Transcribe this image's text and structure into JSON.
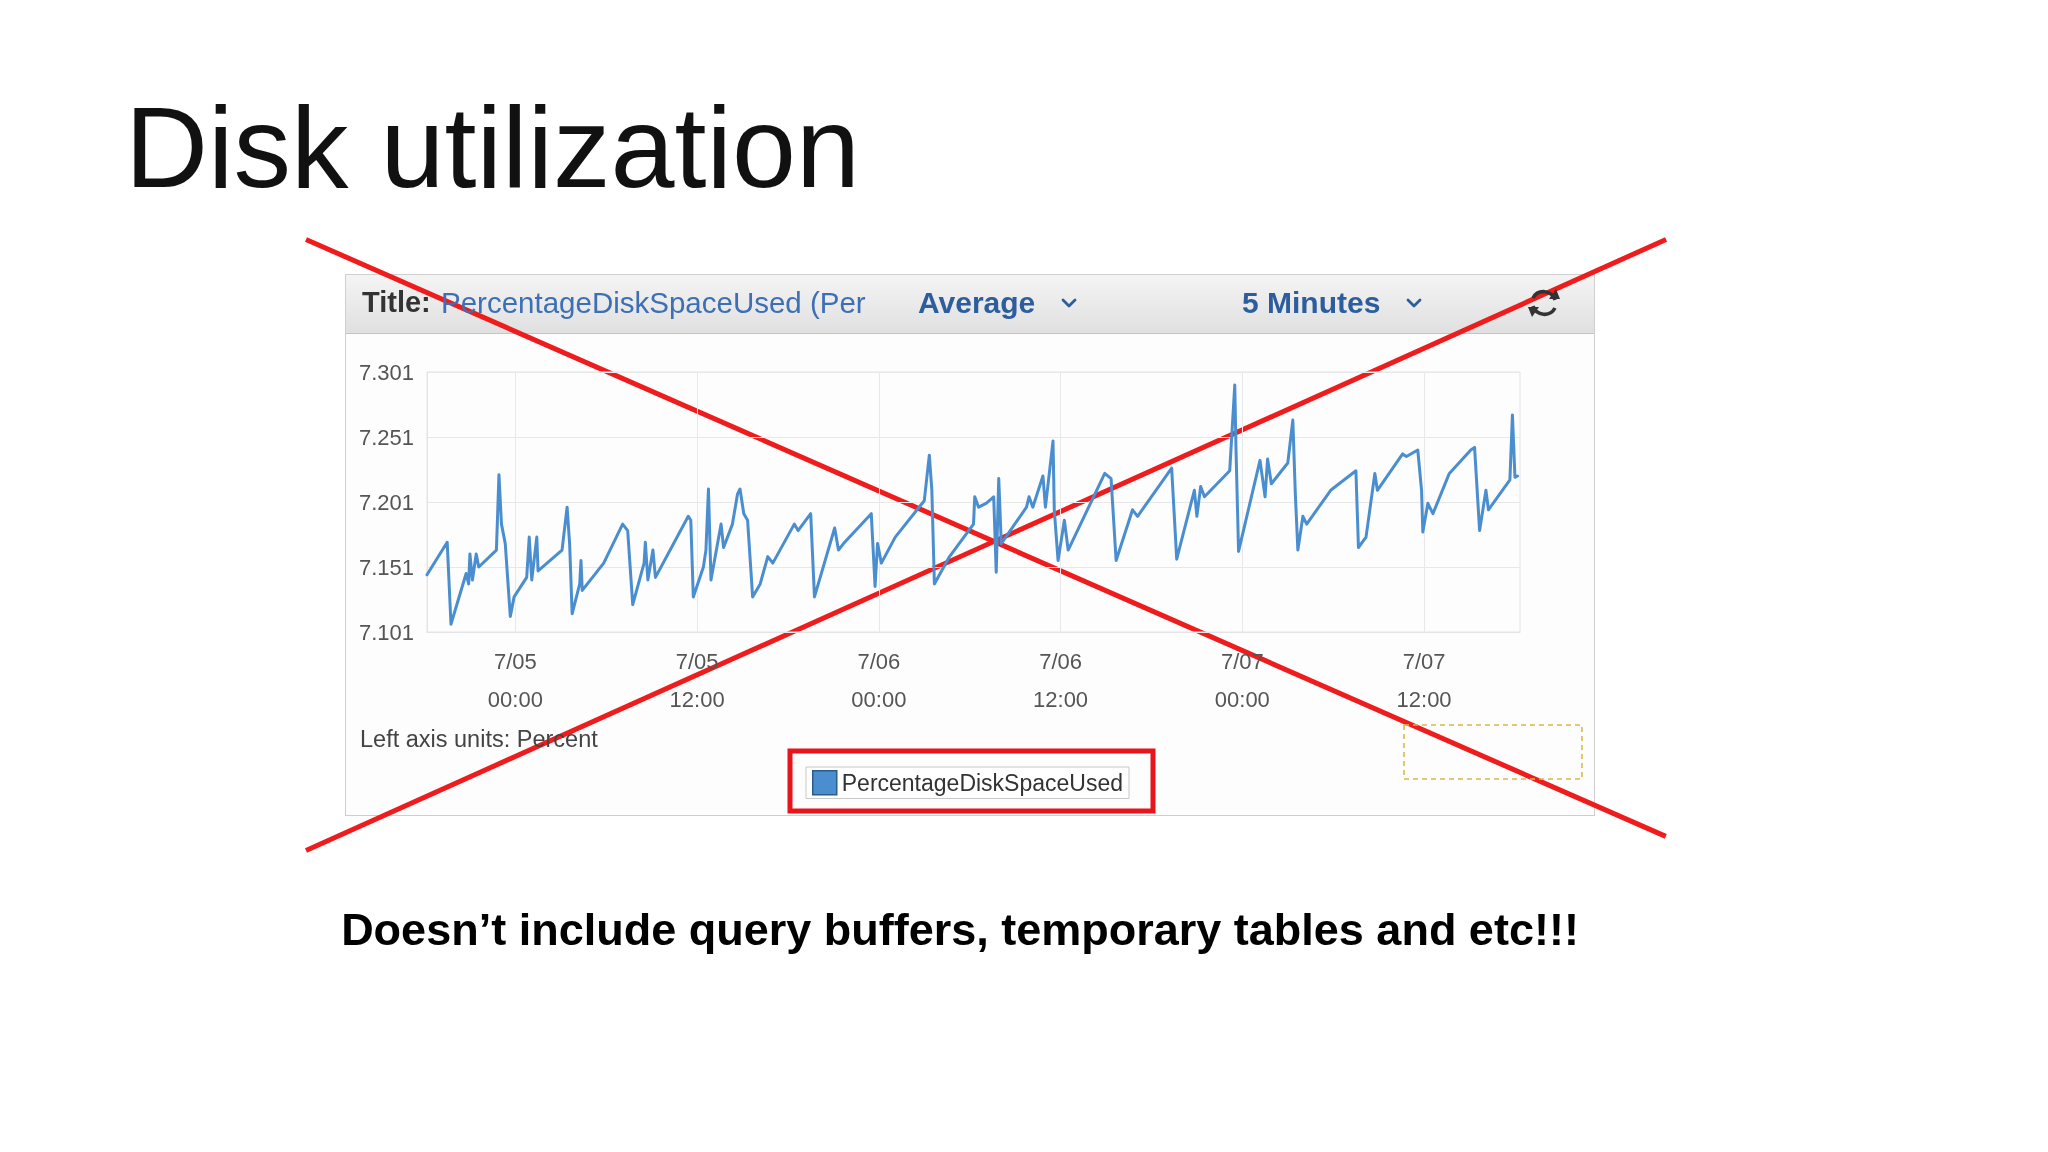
{
  "chart_data": {
    "type": "line",
    "title": "Disk utilization",
    "ylabel": "Left axis units: Percent",
    "annotations": [
      "Title:",
      "PercentageDiskSpaceUsed (Per",
      "Average",
      "5 Minutes",
      "Doesn’t include query buffers, temporary tables and etc!!!"
    ],
    "x": [
      "--07-04T18:10",
      "--07-04T19:30",
      "--07-04T19:45",
      "--07-04T20:45",
      "--07-04T20:55",
      "--07-04T21:00",
      "--07-04T21:10",
      "--07-04T21:25",
      "--07-04T21:35",
      "--07-04T22:45",
      "--07-04T22:55",
      "--07-04T23:05",
      "--07-04T23:20",
      "--07-04T23:40",
      "--07-04T23:55",
      "--07-05T00:45",
      "--07-05T00:55",
      "--07-05T01:05",
      "--07-05T01:25",
      "--07-05T01:30",
      "--07-05T03:05",
      "--07-05T03:25",
      "--07-05T03:35",
      "--07-05T03:45",
      "--07-05T04:15",
      "--07-05T04:20",
      "--07-05T04:25",
      "--07-05T05:50",
      "--07-05T07:05",
      "--07-05T07:25",
      "--07-05T07:45",
      "--07-05T08:30",
      "--07-05T08:35",
      "--07-05T08:45",
      "--07-05T09:05",
      "--07-05T09:15",
      "--07-05T11:25",
      "--07-05T11:35",
      "--07-05T11:45",
      "--07-05T12:25",
      "--07-05T12:35",
      "--07-05T12:45",
      "--07-05T12:55",
      "--07-05T13:35",
      "--07-05T13:45",
      "--07-05T14:20",
      "--07-05T14:40",
      "--07-05T14:50",
      "--07-05T15:05",
      "--07-05T15:20",
      "--07-05T15:40",
      "--07-05T16:10",
      "--07-05T16:40",
      "--07-05T17:00",
      "--07-05T18:25",
      "--07-05T18:40",
      "--07-05T19:30",
      "--07-05T19:45",
      "--07-05T21:05",
      "--07-05T21:20",
      "--07-05T21:40",
      "--07-05T23:30",
      "--07-05T23:45",
      "--07-05T23:55",
      "--07-06T00:10",
      "--07-06T01:05",
      "--07-06T03:00",
      "--07-06T03:20",
      "--07-06T03:30",
      "--07-06T03:40",
      "--07-06T04:40",
      "--07-06T06:15",
      "--07-06T06:20",
      "--07-06T06:35",
      "--07-06T07:05",
      "--07-06T07:35",
      "--07-06T07:45",
      "--07-06T07:55",
      "--07-06T08:05",
      "--07-06T09:45",
      "--07-06T09:55",
      "--07-06T10:10",
      "--07-06T10:50",
      "--07-06T11:00",
      "--07-06T11:30",
      "--07-06T11:35",
      "--07-06T11:50",
      "--07-06T12:15",
      "--07-06T12:30",
      "--07-06T14:55",
      "--07-06T15:20",
      "--07-06T15:40",
      "--07-06T16:45",
      "--07-06T17:05",
      "--07-06T19:20",
      "--07-06T19:40",
      "--07-06T20:50",
      "--07-06T21:00",
      "--07-06T21:15",
      "--07-06T21:30",
      "--07-06T23:10",
      "--07-06T23:30",
      "--07-06T23:35",
      "--07-06T23:45",
      "--07-07T01:10",
      "--07-07T01:30",
      "--07-07T01:40",
      "--07-07T01:55",
      "--07-07T03:00",
      "--07-07T03:20",
      "--07-07T03:30",
      "--07-07T03:40",
      "--07-07T04:00",
      "--07-07T04:15",
      "--07-07T05:50",
      "--07-07T07:30",
      "--07-07T07:40",
      "--07-07T08:10",
      "--07-07T08:45",
      "--07-07T08:55",
      "--07-07T10:35",
      "--07-07T10:50",
      "--07-07T11:35",
      "--07-07T11:50",
      "--07-07T11:55",
      "--07-07T12:15",
      "--07-07T12:35",
      "--07-07T13:40",
      "--07-07T15:05",
      "--07-07T15:20",
      "--07-07T15:40",
      "--07-07T16:05",
      "--07-07T16:15",
      "--07-07T17:40",
      "--07-07T17:50",
      "--07-07T18:00",
      "--07-07T18:10"
    ],
    "series": [
      {
        "name": "PercentageDiskSpaceUsed",
        "color": "#4a8ecf",
        "values": [
          7.145,
          7.17,
          7.107,
          7.146,
          7.138,
          7.161,
          7.141,
          7.161,
          7.151,
          7.164,
          7.222,
          7.184,
          7.169,
          7.113,
          7.128,
          7.143,
          7.174,
          7.141,
          7.174,
          7.148,
          7.164,
          7.197,
          7.169,
          7.115,
          7.138,
          7.156,
          7.133,
          7.154,
          7.184,
          7.179,
          7.122,
          7.154,
          7.17,
          7.141,
          7.164,
          7.143,
          7.19,
          7.187,
          7.128,
          7.151,
          7.164,
          7.211,
          7.141,
          7.184,
          7.166,
          7.184,
          7.207,
          7.211,
          7.192,
          7.187,
          7.128,
          7.138,
          7.159,
          7.154,
          7.184,
          7.179,
          7.192,
          7.128,
          7.181,
          7.164,
          7.169,
          7.192,
          7.136,
          7.169,
          7.154,
          7.174,
          7.202,
          7.237,
          7.21,
          7.138,
          7.159,
          7.184,
          7.205,
          7.197,
          7.2,
          7.205,
          7.147,
          7.219,
          7.169,
          7.197,
          7.205,
          7.197,
          7.221,
          7.197,
          7.248,
          7.195,
          7.156,
          7.187,
          7.164,
          7.223,
          7.219,
          7.156,
          7.195,
          7.19,
          7.227,
          7.157,
          7.21,
          7.19,
          7.213,
          7.205,
          7.225,
          7.291,
          7.241,
          7.163,
          7.233,
          7.205,
          7.234,
          7.215,
          7.231,
          7.264,
          7.207,
          7.164,
          7.19,
          7.184,
          7.21,
          7.225,
          7.166,
          7.174,
          7.223,
          7.21,
          7.238,
          7.236,
          7.241,
          7.21,
          7.178,
          7.2,
          7.192,
          7.223,
          7.241,
          7.243,
          7.179,
          7.21,
          7.195,
          7.218,
          7.268,
          7.22,
          7.221
        ]
      }
    ],
    "xlim": [
      "--07-04T18:10",
      "--07-07T18:20"
    ],
    "xticks": [
      {
        "value": "--07-05T00:00",
        "label": "7/05\n00:00"
      },
      {
        "value": "--07-05T12:00",
        "label": "7/05\n12:00"
      },
      {
        "value": "--07-06T00:00",
        "label": "7/06\n00:00"
      },
      {
        "value": "--07-06T12:00",
        "label": "7/06\n12:00"
      },
      {
        "value": "--07-07T00:00",
        "label": "7/07\n00:00"
      },
      {
        "value": "--07-07T12:00",
        "label": "7/07\n12:00"
      }
    ],
    "ylim": [
      7.101,
      7.301
    ],
    "yticks": [
      7.101,
      7.151,
      7.201,
      7.251,
      7.301
    ],
    "grid": true,
    "legend": "bottom",
    "marker": "none",
    "line_style": "solid"
  }
}
